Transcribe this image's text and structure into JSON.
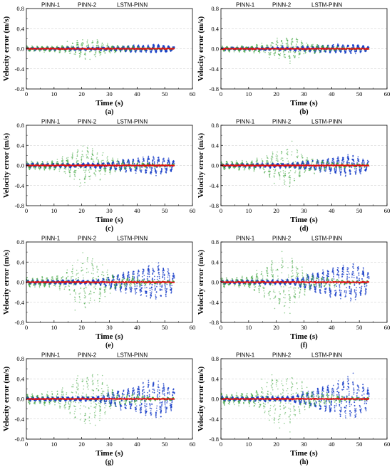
{
  "chart_data": [
    {
      "type": "scatter",
      "panel_label": "(a)",
      "xlabel": "Time (s)",
      "ylabel": "Velocity error (m/s)",
      "xlim": [
        0,
        60
      ],
      "ylim": [
        -0.8,
        0.8
      ],
      "xticks": [
        "0",
        "10",
        "20",
        "30",
        "40",
        "50",
        "60"
      ],
      "yticks": [
        "-0.8",
        "-0.4",
        "0.0",
        "0.4",
        "0.8"
      ],
      "grid": "horizontal dashed",
      "legend_position": "top",
      "x_extent": [
        0,
        53.5
      ],
      "series": [
        {
          "name": "PINN-1",
          "color": "#1a3fc8",
          "amplitude_start": 0.02,
          "amplitude_end": 0.06,
          "peak_time": 45
        },
        {
          "name": "PINN-2",
          "color": "#3aa33a",
          "amplitude_start": 0.05,
          "amplitude_end": 0.02,
          "peak_time": 22,
          "peak_amplitude": 0.18
        },
        {
          "name": "LSTM-PINN",
          "color": "#e01010",
          "amplitude_start": 0.005,
          "amplitude_end": 0.005
        }
      ]
    },
    {
      "type": "scatter",
      "panel_label": "(b)",
      "xlabel": "Time (s)",
      "ylabel": "Velocity error (m/s)",
      "xlim": [
        0,
        60
      ],
      "ylim": [
        -0.8,
        0.8
      ],
      "xticks": [
        "0",
        "10",
        "20",
        "30",
        "40",
        "50",
        "60"
      ],
      "yticks": [
        "-0.8",
        "-0.4",
        "0.0",
        "0.4",
        "0.8"
      ],
      "grid": "horizontal dashed",
      "legend_position": "top",
      "x_extent": [
        0,
        53.5
      ],
      "series": [
        {
          "name": "PINN-1",
          "color": "#1a3fc8",
          "amplitude_start": 0.02,
          "amplitude_end": 0.07,
          "peak_time": 45
        },
        {
          "name": "PINN-2",
          "color": "#3aa33a",
          "amplitude_start": 0.06,
          "amplitude_end": 0.02,
          "peak_time": 24,
          "peak_amplitude": 0.24
        },
        {
          "name": "LSTM-PINN",
          "color": "#e01010",
          "amplitude_start": 0.005,
          "amplitude_end": 0.005
        }
      ]
    },
    {
      "type": "scatter",
      "panel_label": "(c)",
      "xlabel": "Time (s)",
      "ylabel": "Velocity error (m/s)",
      "xlim": [
        0,
        60
      ],
      "ylim": [
        -0.8,
        0.8
      ],
      "xticks": [
        "0",
        "10",
        "20",
        "30",
        "40",
        "50",
        "60"
      ],
      "yticks": [
        "-0.8",
        "-0.4",
        "0.0",
        "0.4",
        "0.8"
      ],
      "grid": "horizontal dashed",
      "legend_position": "top",
      "x_extent": [
        0,
        53.5
      ],
      "series": [
        {
          "name": "PINN-1",
          "color": "#1a3fc8",
          "amplitude_start": 0.03,
          "amplitude_end": 0.15,
          "peak_time": 42
        },
        {
          "name": "PINN-2",
          "color": "#3aa33a",
          "amplitude_start": 0.08,
          "amplitude_end": 0.03,
          "peak_time": 22,
          "peak_amplitude": 0.35
        },
        {
          "name": "LSTM-PINN",
          "color": "#e01010",
          "amplitude_start": 0.005,
          "amplitude_end": 0.005
        }
      ]
    },
    {
      "type": "scatter",
      "panel_label": "(d)",
      "xlabel": "Time (s)",
      "ylabel": "Velocity error (m/s)",
      "xlim": [
        0,
        60
      ],
      "ylim": [
        -0.8,
        0.8
      ],
      "xticks": [
        "0",
        "10",
        "20",
        "30",
        "40",
        "50",
        "60"
      ],
      "yticks": [
        "-0.8",
        "-0.4",
        "0.0",
        "0.4",
        "0.8"
      ],
      "grid": "horizontal dashed",
      "legend_position": "top",
      "x_extent": [
        0,
        53.5
      ],
      "series": [
        {
          "name": "PINN-1",
          "color": "#1a3fc8",
          "amplitude_start": 0.03,
          "amplitude_end": 0.16,
          "peak_time": 42
        },
        {
          "name": "PINN-2",
          "color": "#3aa33a",
          "amplitude_start": 0.08,
          "amplitude_end": 0.03,
          "peak_time": 24,
          "peak_amplitude": 0.38
        },
        {
          "name": "LSTM-PINN",
          "color": "#e01010",
          "amplitude_start": 0.005,
          "amplitude_end": 0.005
        }
      ]
    },
    {
      "type": "scatter",
      "panel_label": "(e)",
      "xlabel": "Time (s)",
      "ylabel": "Velocity error (m/s)",
      "xlim": [
        0,
        60
      ],
      "ylim": [
        -0.8,
        0.8
      ],
      "xticks": [
        "0",
        "10",
        "20",
        "30",
        "40",
        "50",
        "60"
      ],
      "yticks": [
        "-0.8",
        "-0.4",
        "0.0",
        "0.4",
        "0.8"
      ],
      "grid": "horizontal dashed",
      "legend_position": "top",
      "x_extent": [
        0,
        53.5
      ],
      "series": [
        {
          "name": "PINN-1",
          "color": "#1a3fc8",
          "amplitude_start": 0.03,
          "amplitude_end": 0.28,
          "peak_time": 43
        },
        {
          "name": "PINN-2",
          "color": "#3aa33a",
          "amplitude_start": 0.09,
          "amplitude_end": 0.03,
          "peak_time": 22,
          "peak_amplitude": 0.5
        },
        {
          "name": "LSTM-PINN",
          "color": "#e01010",
          "amplitude_start": 0.005,
          "amplitude_end": 0.005
        }
      ]
    },
    {
      "type": "scatter",
      "panel_label": "(f)",
      "xlabel": "Time (s)",
      "ylabel": "Velocity error (m/s)",
      "xlim": [
        0,
        60
      ],
      "ylim": [
        -0.8,
        0.8
      ],
      "xticks": [
        "0",
        "10",
        "20",
        "30",
        "40",
        "50",
        "60"
      ],
      "yticks": [
        "-0.8",
        "-0.4",
        "0.0",
        "0.4",
        "0.8"
      ],
      "grid": "horizontal dashed",
      "legend_position": "top",
      "x_extent": [
        0,
        53.5
      ],
      "series": [
        {
          "name": "PINN-1",
          "color": "#1a3fc8",
          "amplitude_start": 0.03,
          "amplitude_end": 0.3,
          "peak_time": 43
        },
        {
          "name": "PINN-2",
          "color": "#3aa33a",
          "amplitude_start": 0.09,
          "amplitude_end": 0.03,
          "peak_time": 22,
          "peak_amplitude": 0.52
        },
        {
          "name": "LSTM-PINN",
          "color": "#e01010",
          "amplitude_start": 0.005,
          "amplitude_end": 0.005
        }
      ]
    },
    {
      "type": "scatter",
      "panel_label": "(g)",
      "xlabel": "Time (s)",
      "ylabel": "Velocity error (m/s)",
      "xlim": [
        0,
        60
      ],
      "ylim": [
        -0.8,
        0.8
      ],
      "xticks": [
        "0",
        "10",
        "20",
        "30",
        "40",
        "50",
        "60"
      ],
      "yticks": [
        "-0.8",
        "-0.4",
        "0.0",
        "0.4",
        "0.8"
      ],
      "grid": "horizontal dashed",
      "legend_position": "top",
      "x_extent": [
        0,
        53.5
      ],
      "series": [
        {
          "name": "PINN-1",
          "color": "#1a3fc8",
          "amplitude_start": 0.03,
          "amplitude_end": 0.3,
          "peak_time": 42
        },
        {
          "name": "PINN-2",
          "color": "#3aa33a",
          "amplitude_start": 0.1,
          "amplitude_end": 0.03,
          "peak_time": 22,
          "peak_amplitude": 0.52
        },
        {
          "name": "LSTM-PINN",
          "color": "#e01010",
          "amplitude_start": 0.005,
          "amplitude_end": 0.005
        }
      ]
    },
    {
      "type": "scatter",
      "panel_label": "(h)",
      "xlabel": "Time (s)",
      "ylabel": "Velocity error (m/s)",
      "xlim": [
        0,
        60
      ],
      "ylim": [
        -0.8,
        0.8
      ],
      "xticks": [
        "0",
        "10",
        "20",
        "30",
        "40",
        "50",
        "60"
      ],
      "yticks": [
        "-0.8",
        "-0.4",
        "0.0",
        "0.4",
        "0.8"
      ],
      "grid": "horizontal dashed",
      "legend_position": "top",
      "x_extent": [
        0,
        53.5
      ],
      "series": [
        {
          "name": "PINN-1",
          "color": "#1a3fc8",
          "amplitude_start": 0.03,
          "amplitude_end": 0.32,
          "peak_time": 42
        },
        {
          "name": "PINN-2",
          "color": "#3aa33a",
          "amplitude_start": 0.1,
          "amplitude_end": 0.03,
          "peak_time": 22,
          "peak_amplitude": 0.55
        },
        {
          "name": "LSTM-PINN",
          "color": "#e01010",
          "amplitude_start": 0.005,
          "amplitude_end": 0.005
        }
      ]
    }
  ]
}
